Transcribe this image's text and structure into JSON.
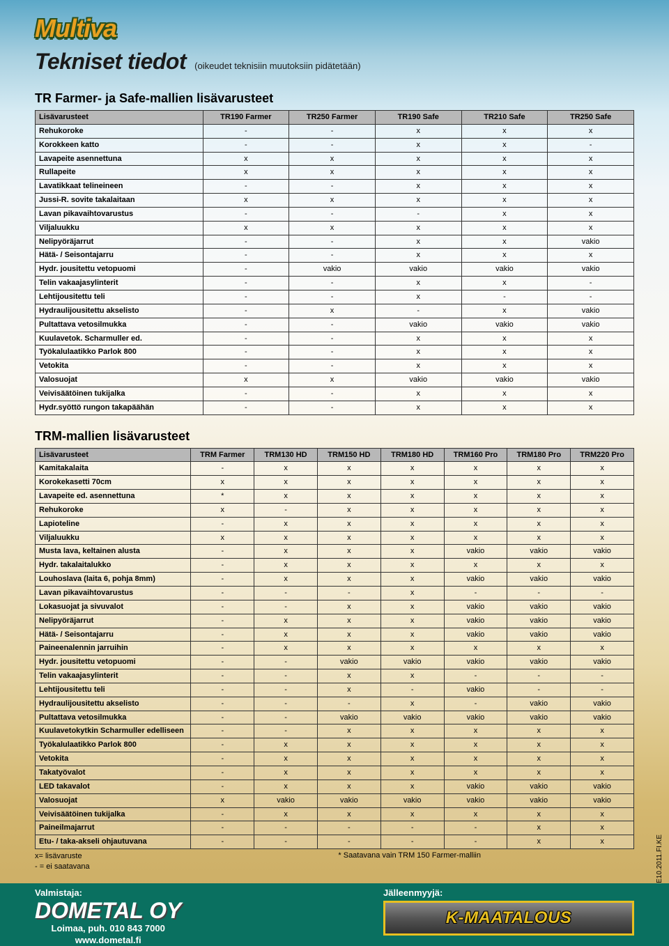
{
  "brand_logo_text": "Multiva",
  "main_title": "Tekniset tiedot",
  "subtitle": "(oikeudet teknisiin muutoksiin pidätetään)",
  "section1_title": "TR Farmer- ja Safe-mallien lisävarusteet",
  "section2_title": "TRM-mallien lisävarusteet",
  "side_code": "07E10.2011.FI.KE",
  "table1": {
    "header_label": "Lisävarusteet",
    "columns": [
      "TR190 Farmer",
      "TR250 Farmer",
      "TR190 Safe",
      "TR210 Safe",
      "TR250 Safe"
    ],
    "rows": [
      {
        "label": "Rehukoroke",
        "v": [
          "-",
          "-",
          "x",
          "x",
          "x"
        ]
      },
      {
        "label": "Korokkeen katto",
        "v": [
          "-",
          "-",
          "x",
          "x",
          "-"
        ]
      },
      {
        "label": "Lavapeite asennettuna",
        "v": [
          "x",
          "x",
          "x",
          "x",
          "x"
        ]
      },
      {
        "label": "Rullapeite",
        "v": [
          "x",
          "x",
          "x",
          "x",
          "x"
        ]
      },
      {
        "label": "Lavatikkaat telineineen",
        "v": [
          "-",
          "-",
          "x",
          "x",
          "x"
        ]
      },
      {
        "label": "Jussi-R. sovite takalaitaan",
        "v": [
          "x",
          "x",
          "x",
          "x",
          "x"
        ]
      },
      {
        "label": "Lavan pikavaihtovarustus",
        "v": [
          "-",
          "-",
          "-",
          "x",
          "x"
        ]
      },
      {
        "label": "Viljaluukku",
        "v": [
          "x",
          "x",
          "x",
          "x",
          "x"
        ]
      },
      {
        "label": "Nelipyöräjarrut",
        "v": [
          "-",
          "-",
          "x",
          "x",
          "vakio"
        ]
      },
      {
        "label": "Hätä- / Seisontajarru",
        "v": [
          "-",
          "-",
          "x",
          "x",
          "x"
        ]
      },
      {
        "label": "Hydr. jousitettu vetopuomi",
        "v": [
          "-",
          "vakio",
          "vakio",
          "vakio",
          "vakio"
        ]
      },
      {
        "label": "Telin vakaajasylinterit",
        "v": [
          "-",
          "-",
          "x",
          "x",
          "-"
        ]
      },
      {
        "label": "Lehtijousitettu teli",
        "v": [
          "-",
          "-",
          "x",
          "-",
          "-"
        ]
      },
      {
        "label": "Hydraulijousitettu akselisto",
        "v": [
          "-",
          "x",
          "-",
          "x",
          "vakio"
        ]
      },
      {
        "label": "Pultattava vetosilmukka",
        "v": [
          "-",
          "-",
          "vakio",
          "vakio",
          "vakio"
        ]
      },
      {
        "label": "Kuulavetok. Scharmuller ed.",
        "v": [
          "-",
          "-",
          "x",
          "x",
          "x"
        ]
      },
      {
        "label": "Työkalulaatikko Parlok 800",
        "v": [
          "-",
          "-",
          "x",
          "x",
          "x"
        ]
      },
      {
        "label": "Vetokita",
        "v": [
          "-",
          "-",
          "x",
          "x",
          "x"
        ]
      },
      {
        "label": "Valosuojat",
        "v": [
          "x",
          "x",
          "vakio",
          "vakio",
          "vakio"
        ]
      },
      {
        "label": "Veivisäätöinen tukijalka",
        "v": [
          "-",
          "-",
          "x",
          "x",
          "x"
        ]
      },
      {
        "label": "Hydr.syöttö rungon takapäähän",
        "v": [
          "-",
          "-",
          "x",
          "x",
          "x"
        ]
      }
    ],
    "header_bg": "#b8b8b8",
    "border_color": "#333333"
  },
  "table2": {
    "header_label": "Lisävarusteet",
    "columns": [
      "TRM Farmer",
      "TRM130 HD",
      "TRM150 HD",
      "TRM180 HD",
      "TRM160 Pro",
      "TRM180 Pro",
      "TRM220 Pro"
    ],
    "rows": [
      {
        "label": "Kamitakalaita",
        "v": [
          "-",
          "x",
          "x",
          "x",
          "x",
          "x",
          "x"
        ]
      },
      {
        "label": "Korokekasetti 70cm",
        "v": [
          "x",
          "x",
          "x",
          "x",
          "x",
          "x",
          "x"
        ]
      },
      {
        "label": "Lavapeite ed. asennettuna",
        "v": [
          "*",
          "x",
          "x",
          "x",
          "x",
          "x",
          "x"
        ]
      },
      {
        "label": "Rehukoroke",
        "v": [
          "x",
          "-",
          "x",
          "x",
          "x",
          "x",
          "x"
        ]
      },
      {
        "label": "Lapioteline",
        "v": [
          "-",
          "x",
          "x",
          "x",
          "x",
          "x",
          "x"
        ]
      },
      {
        "label": "Viljaluukku",
        "v": [
          "x",
          "x",
          "x",
          "x",
          "x",
          "x",
          "x"
        ]
      },
      {
        "label": "Musta lava, keltainen alusta",
        "v": [
          "-",
          "x",
          "x",
          "x",
          "vakio",
          "vakio",
          "vakio"
        ]
      },
      {
        "label": "Hydr. takalaitalukko",
        "v": [
          "-",
          "x",
          "x",
          "x",
          "x",
          "x",
          "x"
        ]
      },
      {
        "label": "Louhoslava (laita 6, pohja 8mm)",
        "v": [
          "-",
          "x",
          "x",
          "x",
          "vakio",
          "vakio",
          "vakio"
        ]
      },
      {
        "label": "Lavan pikavaihtovarustus",
        "v": [
          "-",
          "-",
          "-",
          "x",
          "-",
          "-",
          "-"
        ]
      },
      {
        "label": "Lokasuojat ja sivuvalot",
        "v": [
          "-",
          "-",
          "x",
          "x",
          "vakio",
          "vakio",
          "vakio"
        ]
      },
      {
        "label": "Nelipyöräjarrut",
        "v": [
          "-",
          "x",
          "x",
          "x",
          "vakio",
          "vakio",
          "vakio"
        ]
      },
      {
        "label": "Hätä- / Seisontajarru",
        "v": [
          "-",
          "x",
          "x",
          "x",
          "vakio",
          "vakio",
          "vakio"
        ]
      },
      {
        "label": "Paineenalennin jarruihin",
        "v": [
          "-",
          "x",
          "x",
          "x",
          "x",
          "x",
          "x"
        ]
      },
      {
        "label": "Hydr. jousitettu vetopuomi",
        "v": [
          "-",
          "-",
          "vakio",
          "vakio",
          "vakio",
          "vakio",
          "vakio"
        ]
      },
      {
        "label": "Telin vakaajasylinterit",
        "v": [
          "-",
          "-",
          "x",
          "x",
          "-",
          "-",
          "-"
        ]
      },
      {
        "label": "Lehtijousitettu teli",
        "v": [
          "-",
          "-",
          "x",
          "-",
          "vakio",
          "-",
          "-"
        ]
      },
      {
        "label": "Hydraulijousitettu akselisto",
        "v": [
          "-",
          "-",
          "-",
          "x",
          "-",
          "vakio",
          "vakio"
        ]
      },
      {
        "label": "Pultattava vetosilmukka",
        "v": [
          "-",
          "-",
          "vakio",
          "vakio",
          "vakio",
          "vakio",
          "vakio"
        ]
      },
      {
        "label": "Kuulavetokytkin Scharmuller edelliseen",
        "v": [
          "-",
          "-",
          "x",
          "x",
          "x",
          "x",
          "x"
        ]
      },
      {
        "label": "Työkalulaatikko Parlok 800",
        "v": [
          "-",
          "x",
          "x",
          "x",
          "x",
          "x",
          "x"
        ]
      },
      {
        "label": "Vetokita",
        "v": [
          "-",
          "x",
          "x",
          "x",
          "x",
          "x",
          "x"
        ]
      },
      {
        "label": "Takatyövalot",
        "v": [
          "-",
          "x",
          "x",
          "x",
          "x",
          "x",
          "x"
        ]
      },
      {
        "label": "LED takavalot",
        "v": [
          "-",
          "x",
          "x",
          "x",
          "vakio",
          "vakio",
          "vakio"
        ]
      },
      {
        "label": "Valosuojat",
        "v": [
          "x",
          "vakio",
          "vakio",
          "vakio",
          "vakio",
          "vakio",
          "vakio"
        ]
      },
      {
        "label": "Veivisäätöinen tukijalka",
        "v": [
          "-",
          "x",
          "x",
          "x",
          "x",
          "x",
          "x"
        ]
      },
      {
        "label": "Paineilmajarrut",
        "v": [
          "-",
          "-",
          "-",
          "-",
          "-",
          "x",
          "x"
        ]
      },
      {
        "label": "Etu- / taka-akseli ohjautuvana",
        "v": [
          "-",
          "-",
          "-",
          "-",
          "-",
          "x",
          "x"
        ]
      }
    ],
    "header_bg": "#b8b8b8",
    "border_color": "#333333"
  },
  "legend": {
    "line1": "x= lisävaruste",
    "line2": "- = ei saatavana",
    "footnote": "* Saatavana vain TRM 150 Farmer-malliin"
  },
  "footer": {
    "manufacturer_label": "Valmistaja:",
    "dealer_label": "Jälleenmyyjä:",
    "maker_logo": "DOMETAL OY",
    "maker_addr1": "Loimaa, puh. 010 843 7000",
    "maker_addr2": "www.dometal.fi",
    "dealer_logo": "K-MAATALOUS",
    "band_color": "#0a7060"
  }
}
